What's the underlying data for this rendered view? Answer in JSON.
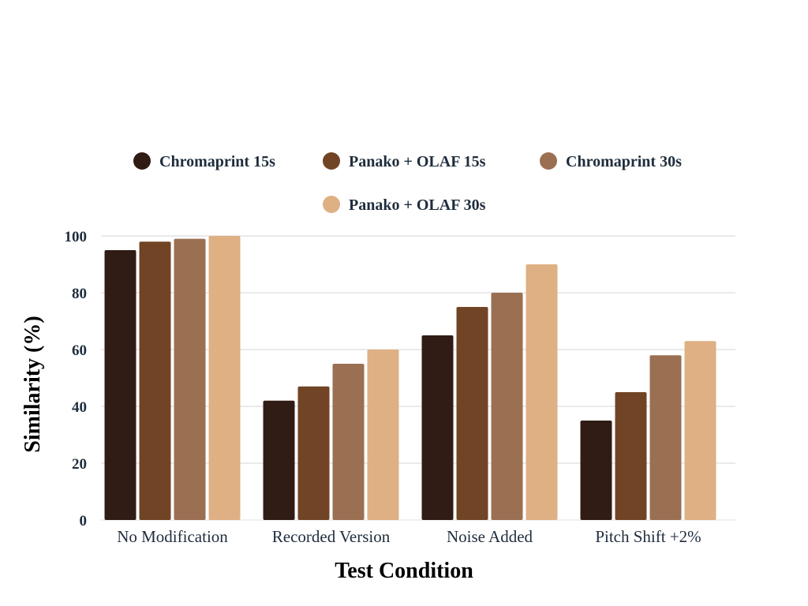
{
  "chart_data": {
    "type": "bar",
    "title": "",
    "xlabel": "Test Condition",
    "ylabel": "Similarity (%)",
    "categories": [
      "No Modification",
      "Recorded Version",
      "Noise Added",
      "Pitch Shift +2%"
    ],
    "series": [
      {
        "name": "Chromaprint 15s",
        "color": "#301c14",
        "values": [
          95,
          42,
          65,
          35
        ]
      },
      {
        "name": "Panako + OLAF 15s",
        "color": "#704424",
        "values": [
          98,
          47,
          75,
          45
        ]
      },
      {
        "name": "Chromaprint 30s",
        "color": "#9a6f52",
        "values": [
          99,
          55,
          80,
          58
        ]
      },
      {
        "name": "Panako + OLAF 30s",
        "color": "#deb083",
        "values": [
          100,
          60,
          90,
          63
        ]
      }
    ],
    "ylim": [
      0,
      100
    ],
    "yticks": [
      0,
      20,
      40,
      60,
      80,
      100
    ],
    "grid": true,
    "legend_position": "top-center"
  }
}
